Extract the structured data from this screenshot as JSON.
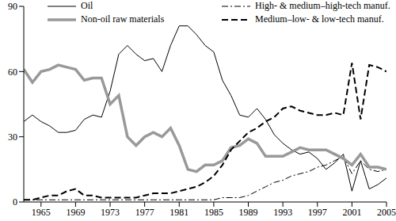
{
  "chart_data": {
    "type": "line",
    "x": [
      1963,
      1964,
      1965,
      1966,
      1967,
      1968,
      1969,
      1970,
      1971,
      1972,
      1973,
      1974,
      1975,
      1976,
      1977,
      1978,
      1979,
      1980,
      1981,
      1982,
      1983,
      1984,
      1985,
      1986,
      1987,
      1988,
      1989,
      1990,
      1991,
      1992,
      1993,
      1994,
      1995,
      1996,
      1997,
      1998,
      1999,
      2000,
      2001,
      2002,
      2003,
      2004,
      2005
    ],
    "xlim": [
      1963,
      2005
    ],
    "xticks": [
      1965,
      1969,
      1973,
      1977,
      1981,
      1985,
      1989,
      1993,
      1997,
      2001,
      2005
    ],
    "ylim": [
      0,
      90
    ],
    "yticks": [
      0,
      30,
      60,
      90
    ],
    "grid": false,
    "legend": "top",
    "series": [
      {
        "name": "Oil",
        "color": "#000000",
        "line_style": "solid",
        "values": [
          37,
          40,
          37,
          35,
          32,
          32,
          33,
          38,
          40,
          39,
          51,
          68,
          72,
          68,
          65,
          66,
          60,
          72,
          81,
          81,
          77,
          72,
          69,
          56,
          49,
          40,
          39,
          43,
          38,
          31,
          27,
          24,
          22,
          23,
          20,
          15,
          18,
          22,
          5,
          19,
          6,
          8,
          11
        ]
      },
      {
        "name": "High- & medium–high-tech manuf.",
        "color": "#000000",
        "line_style": "dashdot",
        "values": [
          1,
          1,
          1,
          1,
          1,
          1,
          1,
          1,
          1,
          1,
          1,
          1,
          1,
          1,
          1,
          1,
          1,
          1,
          1,
          1,
          1,
          1,
          1,
          2,
          2,
          2,
          3,
          5,
          7,
          9,
          10,
          12,
          13,
          14,
          16,
          17,
          19,
          21,
          13,
          19,
          15,
          14,
          15
        ]
      },
      {
        "name": "Non-oil raw materials",
        "color": "#999999",
        "line_style": "solid",
        "values": [
          61,
          55,
          60,
          61,
          63,
          62,
          61,
          56,
          57,
          57,
          45,
          49,
          30,
          26,
          30,
          32,
          30,
          34,
          26,
          15,
          14,
          17,
          17,
          19,
          25,
          26,
          29,
          27,
          21,
          21,
          21,
          23,
          25,
          24,
          24,
          24,
          22,
          20,
          17,
          22,
          16,
          16,
          15
        ]
      },
      {
        "name": "Medium–low- & low-tech manuf.",
        "color": "#000000",
        "line_style": "dashed",
        "values": [
          1,
          1,
          2,
          3,
          3,
          5,
          6,
          3,
          3,
          2,
          2,
          2,
          2,
          2,
          3,
          4,
          4,
          4,
          5,
          6,
          7,
          9,
          12,
          17,
          24,
          28,
          32,
          34,
          37,
          39,
          43,
          44,
          42,
          41,
          40,
          40,
          41,
          40,
          64,
          38,
          63,
          62,
          60
        ]
      }
    ]
  }
}
